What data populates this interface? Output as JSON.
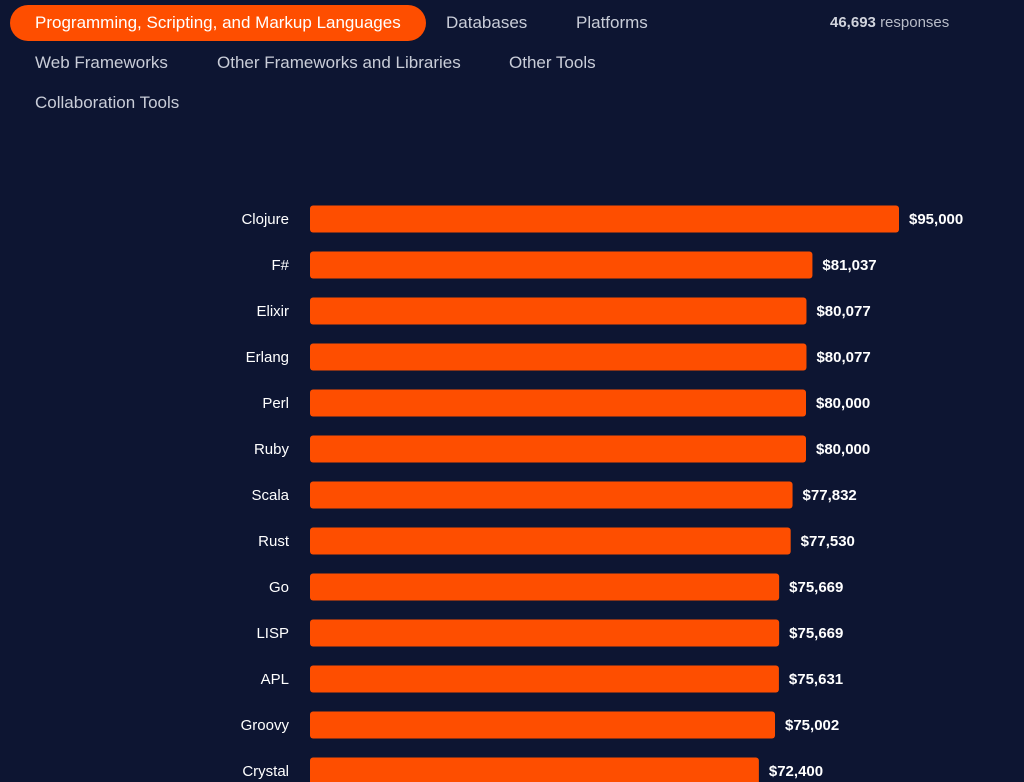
{
  "tabs": [
    {
      "label": "Programming, Scripting, and Markup Languages",
      "active": true
    },
    {
      "label": "Databases",
      "active": false
    },
    {
      "label": "Platforms",
      "active": false
    },
    {
      "label": "Web Frameworks",
      "active": false
    },
    {
      "label": "Other Frameworks and Libraries",
      "active": false
    },
    {
      "label": "Other Tools",
      "active": false
    },
    {
      "label": "Collaboration Tools",
      "active": false
    }
  ],
  "responses": {
    "count": "46,693",
    "label": "responses"
  },
  "colors": {
    "background": "#0d1532",
    "accent": "#fe4e00"
  },
  "chart_data": {
    "type": "bar",
    "orientation": "horizontal",
    "categories": [
      "Clojure",
      "F#",
      "Elixir",
      "Erlang",
      "Perl",
      "Ruby",
      "Scala",
      "Rust",
      "Go",
      "LISP",
      "APL",
      "Groovy",
      "Crystal"
    ],
    "values": [
      95000,
      81037,
      80077,
      80077,
      80000,
      80000,
      77832,
      77530,
      75669,
      75669,
      75631,
      75002,
      72400
    ],
    "value_labels": [
      "$95,000",
      "$81,037",
      "$80,077",
      "$80,077",
      "$80,000",
      "$80,000",
      "$77,832",
      "$77,530",
      "$75,669",
      "$75,669",
      "$75,631",
      "$75,002",
      "$72,400"
    ],
    "xlim": [
      0,
      95000
    ],
    "grid": false,
    "legend": "none"
  }
}
